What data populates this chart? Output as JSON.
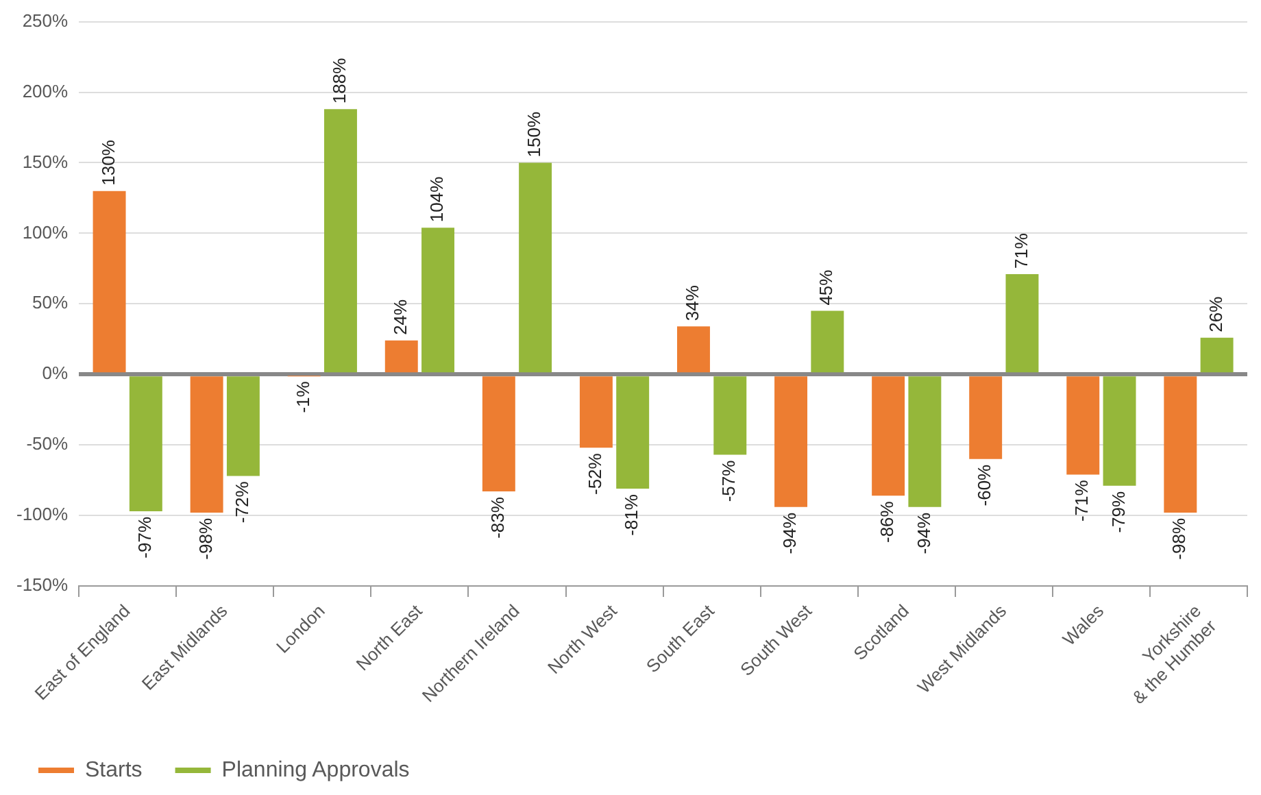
{
  "chart_data": {
    "type": "bar",
    "categories": [
      "East of England",
      "East Midlands",
      "London",
      "North East",
      "Northern Ireland",
      "North West",
      "South East",
      "South West",
      "Scotland",
      "West Midlands",
      "Wales",
      "Yorkshire\n& the Humber"
    ],
    "series": [
      {
        "name": "Starts",
        "color": "#ed7d31",
        "values": [
          130,
          -98,
          -1,
          24,
          -83,
          -52,
          34,
          -94,
          -86,
          -60,
          -71,
          -98
        ],
        "value_labels": [
          "130%",
          "-98%",
          "-1%",
          "24%",
          "-83%",
          "-52%",
          "34%",
          "-94%",
          "-86%",
          "-60%",
          "-71%",
          "-98%"
        ]
      },
      {
        "name": "Planning Approvals",
        "color": "#95b73a",
        "values": [
          -97,
          -72,
          188,
          104,
          150,
          -81,
          -57,
          45,
          -94,
          71,
          -79,
          26
        ],
        "value_labels": [
          "-97%",
          "-72%",
          "188%",
          "104%",
          "150%",
          "-81%",
          "-57%",
          "45%",
          "-94%",
          "71%",
          "-79%",
          "26%"
        ]
      }
    ],
    "ylim": [
      -150,
      250
    ],
    "yticks": [
      {
        "value": -150,
        "label": "-150%"
      },
      {
        "value": -100,
        "label": "-100%"
      },
      {
        "value": -50,
        "label": "-50%"
      },
      {
        "value": 0,
        "label": "0%"
      },
      {
        "value": 50,
        "label": "50%"
      },
      {
        "value": 100,
        "label": "100%"
      },
      {
        "value": 150,
        "label": "150%"
      },
      {
        "value": 200,
        "label": "200%"
      },
      {
        "value": 250,
        "label": "250%"
      }
    ],
    "grid": "y",
    "legend": "bottom left"
  }
}
